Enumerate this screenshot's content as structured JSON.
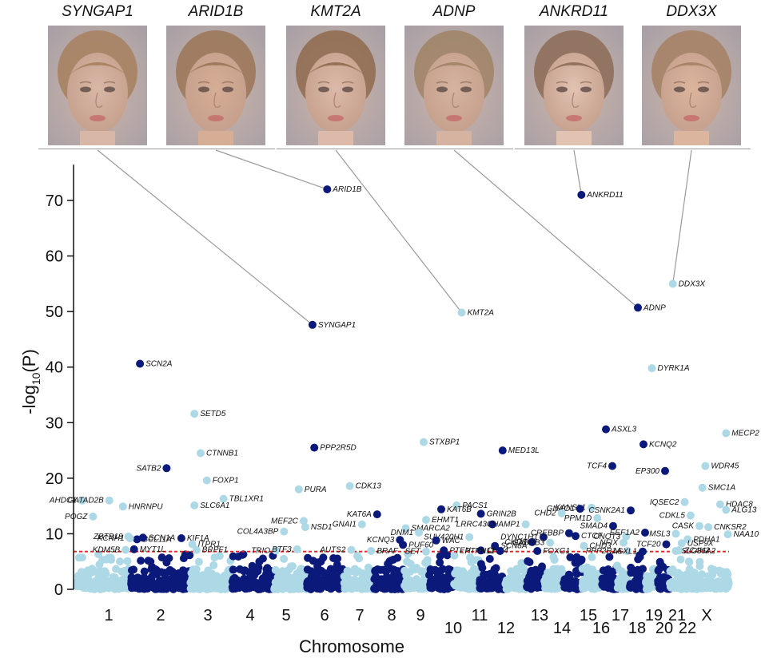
{
  "faces": [
    {
      "gene": "SYNGAP1",
      "skin": "#d9b7a6",
      "hair": "#a7805e"
    },
    {
      "gene": "ARID1B",
      "skin": "#d6ad95",
      "hair": "#9b7556"
    },
    {
      "gene": "KMT2A",
      "skin": "#dcb9a8",
      "hair": "#8f6a4e"
    },
    {
      "gene": "ADNP",
      "skin": "#d5b3a0",
      "hair": "#a08266"
    },
    {
      "gene": "ANKRD11",
      "skin": "#e2c2b1",
      "hair": "#8c6b57"
    },
    {
      "gene": "DDX3X",
      "skin": "#dcb59e",
      "hair": "#a58063"
    }
  ],
  "chart_data": {
    "type": "scatter",
    "xlabel": "Chromosome",
    "ylabel": "-log10(P)",
    "ylabel_main": "-log",
    "ylabel_sub": "10",
    "ylabel_end": "(P)",
    "ylim": [
      0,
      75
    ],
    "yticks": [
      0,
      10,
      20,
      30,
      40,
      50,
      60,
      70
    ],
    "significance_threshold": 6.8,
    "chromosomes": [
      "1",
      "2",
      "3",
      "4",
      "5",
      "6",
      "7",
      "8",
      "9",
      "10",
      "11",
      "12",
      "13",
      "14",
      "15",
      "16",
      "17",
      "18",
      "19",
      "20",
      "21",
      "22",
      "X"
    ],
    "chromosome_labels_row1": [
      "1",
      "2",
      "3",
      "4",
      "5",
      "6",
      "7",
      "8",
      "9",
      "11",
      "13",
      "15",
      "17",
      "19",
      "21",
      "X"
    ],
    "chromosome_labels_row2": [
      "10",
      "12",
      "14",
      "16",
      "18",
      "20",
      "22"
    ],
    "colors": {
      "light": "#add8e6",
      "dark": "#0b1a7a",
      "threshold": "#e8231f",
      "connector": "#9a9a9a"
    },
    "highlighted": [
      {
        "gene": "ARID1B",
        "chr": "6",
        "x": 0.55,
        "y": 72.0,
        "shade": "dark"
      },
      {
        "gene": "ANKRD11",
        "chr": "16",
        "x": 0.97,
        "y": 71.0,
        "shade": "dark"
      },
      {
        "gene": "DDX3X",
        "chr": "X",
        "x": 0.05,
        "y": 55.0,
        "shade": "light"
      },
      {
        "gene": "ADNP",
        "chr": "20",
        "x": 0.5,
        "y": 50.7,
        "shade": "dark"
      },
      {
        "gene": "KMT2A",
        "chr": "11",
        "x": 0.3,
        "y": 49.8,
        "shade": "light"
      },
      {
        "gene": "SYNGAP1",
        "chr": "6",
        "x": 0.15,
        "y": 47.6,
        "shade": "dark"
      },
      {
        "gene": "SCN2A",
        "chr": "2",
        "x": 0.15,
        "y": 40.6,
        "shade": "dark"
      },
      {
        "gene": "DYRK1A",
        "chr": "21",
        "x": 0.5,
        "y": 39.8,
        "shade": "light"
      },
      {
        "gene": "SETD5",
        "chr": "3",
        "x": 0.1,
        "y": 31.6,
        "shade": "light"
      },
      {
        "gene": "ASXL3",
        "chr": "18",
        "x": 0.3,
        "y": 28.8,
        "shade": "dark"
      },
      {
        "gene": "MECP2",
        "chr": "X",
        "x": 0.95,
        "y": 28.1,
        "shade": "light"
      },
      {
        "gene": "STXBP1",
        "chr": "9",
        "x": 0.8,
        "y": 26.5,
        "shade": "light"
      },
      {
        "gene": "KCNQ2",
        "chr": "20",
        "x": 0.85,
        "y": 26.1,
        "shade": "dark"
      },
      {
        "gene": "PPP2R5D",
        "chr": "6",
        "x": 0.2,
        "y": 25.5,
        "shade": "dark"
      },
      {
        "gene": "MED13L",
        "chr": "12",
        "x": 0.9,
        "y": 25.0,
        "shade": "dark"
      },
      {
        "gene": "CTNNB1",
        "chr": "3",
        "x": 0.25,
        "y": 24.5,
        "shade": "light"
      },
      {
        "gene": "TCF4",
        "chr": "18",
        "x": 0.7,
        "y": 22.2,
        "shade": "dark"
      },
      {
        "gene": "WDR45",
        "chr": "X",
        "x": 0.6,
        "y": 22.2,
        "shade": "light"
      },
      {
        "gene": "SATB2",
        "chr": "2",
        "x": 0.6,
        "y": 21.8,
        "shade": "dark"
      },
      {
        "gene": "EP300",
        "chr": "22",
        "x": 0.6,
        "y": 21.3,
        "shade": "dark"
      },
      {
        "gene": "FOXP1",
        "chr": "3",
        "x": 0.4,
        "y": 19.6,
        "shade": "light"
      },
      {
        "gene": "CDK13",
        "chr": "7",
        "x": 0.2,
        "y": 18.6,
        "shade": "light"
      },
      {
        "gene": "SMC1A",
        "chr": "X",
        "x": 0.55,
        "y": 18.3,
        "shade": "light"
      },
      {
        "gene": "PURA",
        "chr": "5",
        "x": 0.75,
        "y": 18.0,
        "shade": "light"
      },
      {
        "gene": "TBL1XR1",
        "chr": "3",
        "x": 0.8,
        "y": 16.3,
        "shade": "light"
      },
      {
        "gene": "AHDC1",
        "chr": "1",
        "x": 0.1,
        "y": 16.0,
        "shade": "light"
      },
      {
        "gene": "GATAD2B",
        "chr": "1",
        "x": 0.6,
        "y": 16.0,
        "shade": "light"
      },
      {
        "gene": "IQSEC2",
        "chr": "X",
        "x": 0.25,
        "y": 15.7,
        "shade": "light"
      },
      {
        "gene": "HDAC8",
        "chr": "X",
        "x": 0.85,
        "y": 15.3,
        "shade": "light"
      },
      {
        "gene": "SLC6A1",
        "chr": "3",
        "x": 0.1,
        "y": 15.1,
        "shade": "light"
      },
      {
        "gene": "PACS1",
        "chr": "11",
        "x": 0.1,
        "y": 15.1,
        "shade": "light"
      },
      {
        "gene": "HNRNPU",
        "chr": "1",
        "x": 0.85,
        "y": 14.9,
        "shade": "light"
      },
      {
        "gene": "KANSL1",
        "chr": "17",
        "x": 0.5,
        "y": 14.7,
        "shade": "light"
      },
      {
        "gene": "GNAO1",
        "chr": "16",
        "x": 0.9,
        "y": 14.5,
        "shade": "dark"
      },
      {
        "gene": "KAT6B",
        "chr": "10",
        "x": 0.5,
        "y": 14.4,
        "shade": "dark"
      },
      {
        "gene": "ALG13",
        "chr": "X",
        "x": 0.95,
        "y": 14.3,
        "shade": "light"
      },
      {
        "gene": "CSNK2A1",
        "chr": "20",
        "x": 0.05,
        "y": 14.2,
        "shade": "dark"
      },
      {
        "gene": "CHD2",
        "chr": "15",
        "x": 0.9,
        "y": 13.7,
        "shade": "light"
      },
      {
        "gene": "GRIN2B",
        "chr": "12",
        "x": 0.05,
        "y": 13.6,
        "shade": "dark"
      },
      {
        "gene": "KAT6A",
        "chr": "8",
        "x": 0.1,
        "y": 13.5,
        "shade": "dark"
      },
      {
        "gene": "CDKL5",
        "chr": "X",
        "x": 0.35,
        "y": 13.3,
        "shade": "light"
      },
      {
        "gene": "POGZ",
        "chr": "1",
        "x": 0.3,
        "y": 13.1,
        "shade": "light"
      },
      {
        "gene": "PPM1D",
        "chr": "17",
        "x": 0.8,
        "y": 12.8,
        "shade": "light"
      },
      {
        "gene": "EHMT1",
        "chr": "9",
        "x": 0.9,
        "y": 12.5,
        "shade": "light"
      },
      {
        "gene": "MEF2C",
        "chr": "5",
        "x": 0.9,
        "y": 12.3,
        "shade": "light"
      },
      {
        "gene": "NSD1",
        "chr": "5",
        "x": 0.95,
        "y": 11.2,
        "shade": "light"
      },
      {
        "gene": "LRRC43",
        "chr": "12",
        "x": 0.5,
        "y": 11.7,
        "shade": "dark"
      },
      {
        "gene": "CHAMP1",
        "chr": "13",
        "x": 0.95,
        "y": 11.7,
        "shade": "light"
      },
      {
        "gene": "GNAI1",
        "chr": "7",
        "x": 0.6,
        "y": 11.7,
        "shade": "light"
      },
      {
        "gene": "CASK",
        "chr": "X",
        "x": 0.5,
        "y": 11.4,
        "shade": "light"
      },
      {
        "gene": "CNKSR2",
        "chr": "X",
        "x": 0.65,
        "y": 11.2,
        "shade": "light"
      },
      {
        "gene": "SMARCA2",
        "chr": "9",
        "x": 0.05,
        "y": 11.0,
        "shade": "light"
      },
      {
        "gene": "BCL11A",
        "chr": "2",
        "x": 0.1,
        "y": 9.0,
        "shade": "dark"
      },
      {
        "gene": "SCN1A",
        "chr": "2",
        "x": 0.2,
        "y": 9.3,
        "shade": "dark"
      },
      {
        "gene": "KIF1A",
        "chr": "2",
        "x": 0.85,
        "y": 9.2,
        "shade": "dark"
      },
      {
        "gene": "ZBTB18",
        "chr": "1",
        "x": 0.95,
        "y": 9.5,
        "shade": "light"
      },
      {
        "gene": "COL4A3BP",
        "chr": "5",
        "x": 0.3,
        "y": 10.4,
        "shade": "light"
      },
      {
        "gene": "DNM1",
        "chr": "9",
        "x": 0.6,
        "y": 10.2,
        "shade": "light"
      },
      {
        "gene": "SUV420H1",
        "chr": "11",
        "x": 0.6,
        "y": 9.4,
        "shade": "light"
      },
      {
        "gene": "DYNC1H1",
        "chr": "14",
        "x": 0.95,
        "y": 9.4,
        "shade": "dark"
      },
      {
        "gene": "CHD8",
        "chr": "14",
        "x": 0.3,
        "y": 8.5,
        "shade": "dark"
      },
      {
        "gene": "CREBBP",
        "chr": "16",
        "x": 0.3,
        "y": 10.1,
        "shade": "dark"
      },
      {
        "gene": "CTCF",
        "chr": "16",
        "x": 0.65,
        "y": 9.6,
        "shade": "dark"
      },
      {
        "gene": "GABRB3",
        "chr": "15",
        "x": 0.3,
        "y": 8.4,
        "shade": "light"
      },
      {
        "gene": "CNOT3",
        "chr": "19",
        "x": 0.7,
        "y": 9.5,
        "shade": "light"
      },
      {
        "gene": "SMAD4",
        "chr": "18",
        "x": 0.75,
        "y": 11.4,
        "shade": "dark"
      },
      {
        "gene": "EEF1A2",
        "chr": "20",
        "x": 0.95,
        "y": 10.2,
        "shade": "dark"
      },
      {
        "gene": "MSL3",
        "chr": "X",
        "x": 0.1,
        "y": 10.0,
        "shade": "light"
      },
      {
        "gene": "NAA10",
        "chr": "X",
        "x": 0.98,
        "y": 9.9,
        "shade": "light"
      },
      {
        "gene": "PDHA1",
        "chr": "X",
        "x": 0.3,
        "y": 9.0,
        "shade": "light"
      },
      {
        "gene": "USP9X",
        "chr": "X",
        "x": 0.2,
        "y": 8.3,
        "shade": "light"
      },
      {
        "gene": "KCNH1",
        "chr": "1",
        "x": 0.98,
        "y": 9.2,
        "shade": "light"
      },
      {
        "gene": "WAC",
        "chr": "10",
        "x": 0.3,
        "y": 8.8,
        "shade": "dark"
      },
      {
        "gene": "KCNQ3",
        "chr": "8",
        "x": 0.85,
        "y": 8.9,
        "shade": "dark"
      },
      {
        "gene": "PUF60",
        "chr": "8",
        "x": 0.95,
        "y": 8.0,
        "shade": "dark"
      },
      {
        "gene": "NFIX",
        "chr": "19",
        "x": 0.5,
        "y": 8.4,
        "shade": "light"
      },
      {
        "gene": "TCF20",
        "chr": "22",
        "x": 0.7,
        "y": 8.1,
        "shade": "dark"
      },
      {
        "gene": "ITPR1",
        "chr": "3",
        "x": 0.05,
        "y": 8.1,
        "shade": "light"
      },
      {
        "gene": "SCN8A",
        "chr": "12",
        "x": 0.6,
        "y": 7.8,
        "shade": "dark"
      },
      {
        "gene": "CHD3",
        "chr": "17",
        "x": 0.1,
        "y": 7.8,
        "shade": "light"
      },
      {
        "gene": "MYT1L",
        "chr": "2",
        "x": 0.05,
        "y": 7.2,
        "shade": "dark"
      },
      {
        "gene": "KDM5B",
        "chr": "1",
        "x": 0.9,
        "y": 7.1,
        "shade": "light"
      },
      {
        "gene": "BRPF1",
        "chr": "3",
        "x": 0.15,
        "y": 7.1,
        "shade": "light"
      },
      {
        "gene": "TRIO",
        "chr": "5",
        "x": 0.05,
        "y": 7.0,
        "shade": "light"
      },
      {
        "gene": "BTF3",
        "chr": "5",
        "x": 0.7,
        "y": 7.2,
        "shade": "light"
      },
      {
        "gene": "AUTS2",
        "chr": "7",
        "x": 0.25,
        "y": 7.1,
        "shade": "light"
      },
      {
        "gene": "BRAF",
        "chr": "7",
        "x": 0.9,
        "y": 6.9,
        "shade": "light"
      },
      {
        "gene": "SET",
        "chr": "9",
        "x": 0.9,
        "y": 6.8,
        "shade": "light"
      },
      {
        "gene": "PTEN",
        "chr": "10",
        "x": 0.6,
        "y": 7.0,
        "shade": "dark"
      },
      {
        "gene": "CHD4",
        "chr": "12",
        "x": 0.05,
        "y": 7.0,
        "shade": "dark"
      },
      {
        "gene": "PTPN11",
        "chr": "12",
        "x": 0.8,
        "y": 6.9,
        "shade": "dark"
      },
      {
        "gene": "FOXG1",
        "chr": "14",
        "x": 0.6,
        "y": 6.9,
        "shade": "dark"
      },
      {
        "gene": "PPP2R1A",
        "chr": "19",
        "x": 0.8,
        "y": 6.9,
        "shade": "light"
      },
      {
        "gene": "ASXL1",
        "chr": "20",
        "x": 0.8,
        "y": 6.8,
        "shade": "dark"
      },
      {
        "gene": "ZC4H2",
        "chr": "X",
        "x": 0.15,
        "y": 7.0,
        "shade": "light"
      },
      {
        "gene": "SLC35A2",
        "chr": "X",
        "x": 0.1,
        "y": 6.9,
        "shade": "light"
      }
    ]
  }
}
